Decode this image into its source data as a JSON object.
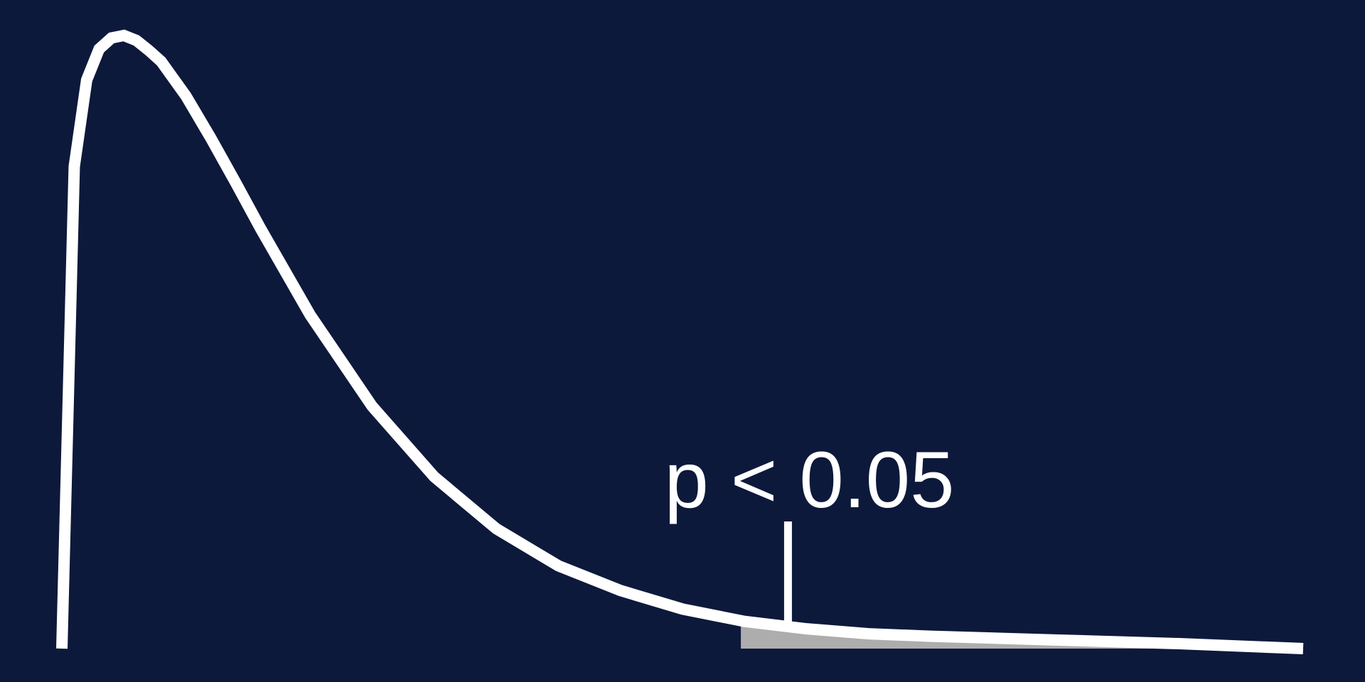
{
  "colors": {
    "background": "#0d193b",
    "curve": "#ffffff",
    "tail_fill": "#adadad",
    "marker": "#ffffff",
    "label": "#ffffff"
  },
  "chart_data": {
    "type": "area",
    "title": "",
    "xlabel": "",
    "ylabel": "",
    "grid": false,
    "legend": "none",
    "xlim": [
      0,
      10
    ],
    "ylim": [
      0,
      0.5
    ],
    "series": [
      {
        "kind": "density-curve",
        "x": [
          0.0,
          0.1,
          0.2,
          0.3,
          0.4,
          0.5,
          0.6,
          0.7,
          0.8,
          0.9,
          1.0,
          1.1,
          1.2,
          1.3,
          1.4,
          1.6,
          2.0,
          2.5,
          3.0,
          3.5,
          4.0,
          4.5,
          5.0,
          5.5,
          6.0,
          6.5,
          7.0,
          8.0,
          9.0,
          10.0
        ],
        "y": [
          0.0,
          0.39,
          0.46,
          0.485,
          0.494,
          0.496,
          0.492,
          0.484,
          0.475,
          0.461,
          0.447,
          0.43,
          0.413,
          0.395,
          0.377,
          0.34,
          0.27,
          0.196,
          0.139,
          0.097,
          0.067,
          0.047,
          0.032,
          0.022,
          0.016,
          0.012,
          0.01,
          0.007,
          0.004,
          0.0
        ]
      }
    ],
    "shaded_region": {
      "x_from": 5.47,
      "x_to": 10.0
    },
    "annotation": {
      "text": "p < 0.05",
      "x": 5.85
    }
  }
}
